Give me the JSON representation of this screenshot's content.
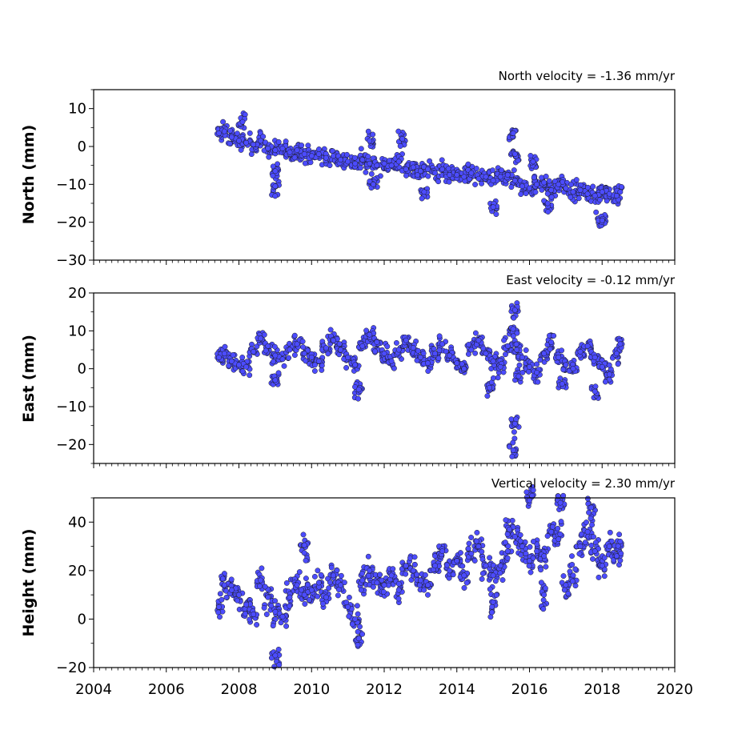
{
  "colors": {
    "marker_fill": "#4c4cff",
    "marker_edge": "#1a1a1a",
    "axes": "#000000",
    "background": "#ffffff"
  },
  "chart_data": [
    {
      "type": "scatter",
      "title": "North velocity = -1.36 mm/yr",
      "xlabel": "",
      "ylabel": "North (mm)",
      "xlim": [
        2004,
        2020
      ],
      "ylim": [
        -30,
        15
      ],
      "yticks": [
        -30,
        -20,
        -10,
        0,
        10
      ],
      "ytick_labels": [
        "−30",
        "−20",
        "−10",
        "0",
        "10"
      ],
      "x_tick_labels_visible": false,
      "series": [
        {
          "x": [
            2007.45,
            2007.6,
            2007.8,
            2008.0,
            2008.2,
            2008.4,
            2008.6,
            2008.8,
            2009.0,
            2009.2,
            2009.4,
            2009.6,
            2009.8,
            2010.0,
            2010.2,
            2010.4,
            2010.6,
            2010.8,
            2011.0,
            2011.2,
            2011.4,
            2011.6,
            2011.8,
            2012.0,
            2012.2,
            2012.4,
            2012.6,
            2012.8,
            2013.0,
            2013.2,
            2013.4,
            2013.6,
            2013.8,
            2014.0,
            2014.2,
            2014.4,
            2014.6,
            2014.8,
            2015.0,
            2015.2,
            2015.4,
            2015.6,
            2015.8,
            2016.0,
            2016.2,
            2016.4,
            2016.6,
            2016.8,
            2017.0,
            2017.2,
            2017.4,
            2017.6,
            2017.8,
            2018.0,
            2018.2,
            2018.4,
            2018.5,
            2008.1,
            2009.0,
            2011.6,
            2012.5,
            2015.55,
            2015.6,
            2016.1,
            2009.0,
            2011.7,
            2013.1,
            2015.0,
            2016.5,
            2017.9,
            2018.0
          ],
          "y": [
            3.5,
            4.0,
            2.5,
            1.5,
            1.0,
            0.5,
            1.5,
            -0.5,
            -1.0,
            -0.5,
            -1.5,
            -1.0,
            -2.0,
            -2.5,
            -2.0,
            -3.0,
            -2.5,
            -3.5,
            -4.0,
            -4.5,
            -3.5,
            -4.5,
            -5.0,
            -4.5,
            -5.0,
            -4.0,
            -6.0,
            -5.5,
            -6.5,
            -6.0,
            -7.0,
            -6.0,
            -7.5,
            -7.5,
            -8.0,
            -7.0,
            -8.5,
            -8.0,
            -9.0,
            -8.0,
            -7.5,
            -9.0,
            -10.5,
            -11.0,
            -10.0,
            -9.5,
            -11.5,
            -10.0,
            -11.0,
            -12.0,
            -11.5,
            -12.5,
            -13.0,
            -12.0,
            -12.5,
            -13.0,
            -12.0,
            6.5,
            -10.5,
            1.5,
            2.0,
            3.5,
            -2.0,
            -4.0,
            -6.5,
            -10.0,
            -12.0,
            -16.0,
            -15.0,
            -19.5,
            -19.5
          ]
        }
      ]
    },
    {
      "type": "scatter",
      "title": "East velocity = -0.12 mm/yr",
      "xlabel": "",
      "ylabel": "East (mm)",
      "xlim": [
        2004,
        2020
      ],
      "ylim": [
        -25,
        20
      ],
      "yticks": [
        -20,
        -10,
        0,
        10,
        20
      ],
      "ytick_labels": [
        "−20",
        "−10",
        "0",
        "10",
        "20"
      ],
      "x_tick_labels_visible": false,
      "series": [
        {
          "x": [
            2007.45,
            2007.6,
            2007.8,
            2008.0,
            2008.2,
            2008.4,
            2008.6,
            2008.8,
            2009.0,
            2009.2,
            2009.4,
            2009.6,
            2009.8,
            2010.0,
            2010.2,
            2010.4,
            2010.6,
            2010.8,
            2011.0,
            2011.2,
            2011.4,
            2011.6,
            2011.8,
            2012.0,
            2012.2,
            2012.4,
            2012.6,
            2012.8,
            2013.0,
            2013.2,
            2013.4,
            2013.6,
            2013.8,
            2014.0,
            2014.2,
            2014.4,
            2014.6,
            2014.8,
            2015.0,
            2015.2,
            2015.4,
            2015.55,
            2015.6,
            2015.65,
            2015.7,
            2015.6,
            2015.55,
            2015.8,
            2016.0,
            2016.2,
            2016.4,
            2016.6,
            2016.8,
            2017.0,
            2017.2,
            2017.4,
            2017.6,
            2017.8,
            2018.0,
            2018.2,
            2018.4,
            2018.5,
            2009.0,
            2011.3,
            2014.9,
            2016.9,
            2017.8
          ],
          "y": [
            3.0,
            4.0,
            2.0,
            1.0,
            0.5,
            4.5,
            8.0,
            6.0,
            3.5,
            2.5,
            5.0,
            6.5,
            4.0,
            3.0,
            2.0,
            5.5,
            7.5,
            5.0,
            3.0,
            1.0,
            6.0,
            9.0,
            7.0,
            4.0,
            2.0,
            5.0,
            7.5,
            5.5,
            3.0,
            1.5,
            4.0,
            6.5,
            3.5,
            1.5,
            0.0,
            5.0,
            7.5,
            4.0,
            2.0,
            0.5,
            6.0,
            10.5,
            15.5,
            5.0,
            -2.0,
            -14.5,
            -21.5,
            3.0,
            0.5,
            -1.0,
            4.0,
            7.0,
            3.0,
            1.0,
            0.0,
            4.5,
            6.0,
            3.0,
            0.5,
            -1.5,
            4.0,
            6.5,
            -3.0,
            -5.5,
            -5.0,
            -4.0,
            -6.0
          ]
        }
      ]
    },
    {
      "type": "scatter",
      "title": "Vertical velocity = 2.30 mm/yr",
      "xlabel": "",
      "ylabel": "Height (mm)",
      "xlim": [
        2004,
        2020
      ],
      "ylim": [
        -20,
        50
      ],
      "yticks": [
        -20,
        0,
        20,
        40
      ],
      "ytick_labels": [
        "−20",
        "0",
        "20",
        "40"
      ],
      "xticks": [
        2004,
        2006,
        2008,
        2010,
        2012,
        2014,
        2016,
        2018,
        2020
      ],
      "xtick_labels": [
        "2004",
        "2006",
        "2008",
        "2010",
        "2012",
        "2014",
        "2016",
        "2018",
        "2020"
      ],
      "series": [
        {
          "x": [
            2007.45,
            2007.6,
            2007.8,
            2008.0,
            2008.2,
            2008.4,
            2008.6,
            2008.8,
            2009.0,
            2009.2,
            2009.4,
            2009.6,
            2009.8,
            2010.0,
            2010.2,
            2010.4,
            2010.6,
            2010.8,
            2011.0,
            2011.2,
            2011.4,
            2011.6,
            2011.8,
            2012.0,
            2012.2,
            2012.4,
            2012.6,
            2012.8,
            2013.0,
            2013.2,
            2013.4,
            2013.6,
            2013.8,
            2014.0,
            2014.2,
            2014.4,
            2014.6,
            2014.8,
            2015.0,
            2015.2,
            2015.4,
            2015.6,
            2015.8,
            2016.0,
            2016.2,
            2016.4,
            2016.6,
            2016.8,
            2017.0,
            2017.2,
            2017.4,
            2017.6,
            2017.8,
            2018.0,
            2018.2,
            2018.4,
            2018.5,
            2009.0,
            2009.8,
            2011.3,
            2015.0,
            2016.0,
            2016.85,
            2017.7,
            2015.45,
            2016.4
          ],
          "y": [
            5.0,
            14.0,
            12.0,
            10.0,
            6.0,
            2.0,
            16.0,
            9.0,
            3.0,
            1.0,
            9.0,
            14.0,
            10.0,
            12.0,
            15.0,
            9.0,
            18.0,
            14.0,
            5.0,
            0.0,
            16.0,
            20.0,
            15.0,
            14.0,
            18.0,
            12.0,
            22.0,
            20.0,
            16.0,
            14.0,
            22.0,
            28.0,
            20.0,
            24.0,
            18.0,
            27.0,
            30.0,
            22.0,
            18.0,
            22.0,
            28.0,
            34.0,
            30.0,
            24.0,
            28.0,
            26.0,
            36.0,
            33.0,
            14.0,
            18.0,
            30.0,
            36.0,
            28.0,
            22.0,
            30.0,
            26.0,
            32.0,
            -15.0,
            30.5,
            -8.0,
            7.0,
            49.0,
            48.0,
            46.0,
            37.0,
            10.0
          ]
        }
      ]
    }
  ]
}
